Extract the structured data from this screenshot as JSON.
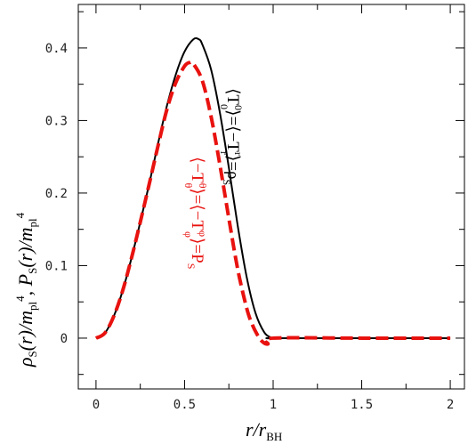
{
  "chart_data": {
    "type": "line",
    "xlabel": "r/r_BH",
    "ylabel": "ρ_S(r)/m_pl^4,  P_S(r)/m_pl^4",
    "xlim": [
      -0.1,
      2.08
    ],
    "ylim": [
      -0.07,
      0.46
    ],
    "xticks": [
      0,
      0.5,
      1,
      1.5,
      2
    ],
    "xtick_labels": [
      "0",
      "0.5",
      "1",
      "1.5",
      "2"
    ],
    "yticks": [
      0,
      0.1,
      0.2,
      0.3,
      0.4
    ],
    "ytick_labels": [
      "0",
      "0.1",
      "0.2",
      "0.3",
      "0.4"
    ],
    "grid": false,
    "series": [
      {
        "color": "#000000",
        "style": "solid",
        "x": [
          0,
          0.05,
          0.1,
          0.15,
          0.2,
          0.25,
          0.3,
          0.35,
          0.4,
          0.45,
          0.5,
          0.55,
          0.58,
          0.6,
          0.65,
          0.7,
          0.75,
          0.8,
          0.85,
          0.9,
          0.95,
          0.99,
          1.0,
          1.5,
          2.0
        ],
        "y": [
          0,
          0.007,
          0.03,
          0.065,
          0.11,
          0.16,
          0.212,
          0.268,
          0.32,
          0.363,
          0.395,
          0.412,
          0.412,
          0.405,
          0.37,
          0.31,
          0.235,
          0.155,
          0.085,
          0.035,
          0.008,
          0.0005,
          0,
          0,
          0
        ]
      },
      {
        "color": "#e8120f",
        "style": "dashed",
        "x": [
          0,
          0.05,
          0.1,
          0.15,
          0.2,
          0.25,
          0.3,
          0.35,
          0.4,
          0.45,
          0.5,
          0.53,
          0.55,
          0.6,
          0.65,
          0.7,
          0.75,
          0.8,
          0.85,
          0.88,
          0.91,
          0.94,
          0.97,
          1.0,
          1.5,
          2.0
        ],
        "y": [
          0,
          0.007,
          0.03,
          0.065,
          0.11,
          0.16,
          0.212,
          0.265,
          0.315,
          0.352,
          0.375,
          0.38,
          0.378,
          0.355,
          0.305,
          0.238,
          0.165,
          0.095,
          0.042,
          0.02,
          0.005,
          -0.005,
          -0.008,
          0,
          0,
          0
        ]
      }
    ],
    "annotations": [
      {
        "text_parts": [
          "⟨T",
          "0",
          "0",
          "⟩=⟨−T",
          "r",
          "r",
          "⟩=ρ",
          "S"
        ],
        "color": "#000000",
        "orientation": "vertical"
      },
      {
        "text_parts": [
          "⟨−T",
          "θ",
          "θ",
          "⟩=⟨−T",
          "φ",
          "φ",
          "⟩=P",
          "S"
        ],
        "color": "#e8120f",
        "orientation": "vertical"
      }
    ]
  }
}
